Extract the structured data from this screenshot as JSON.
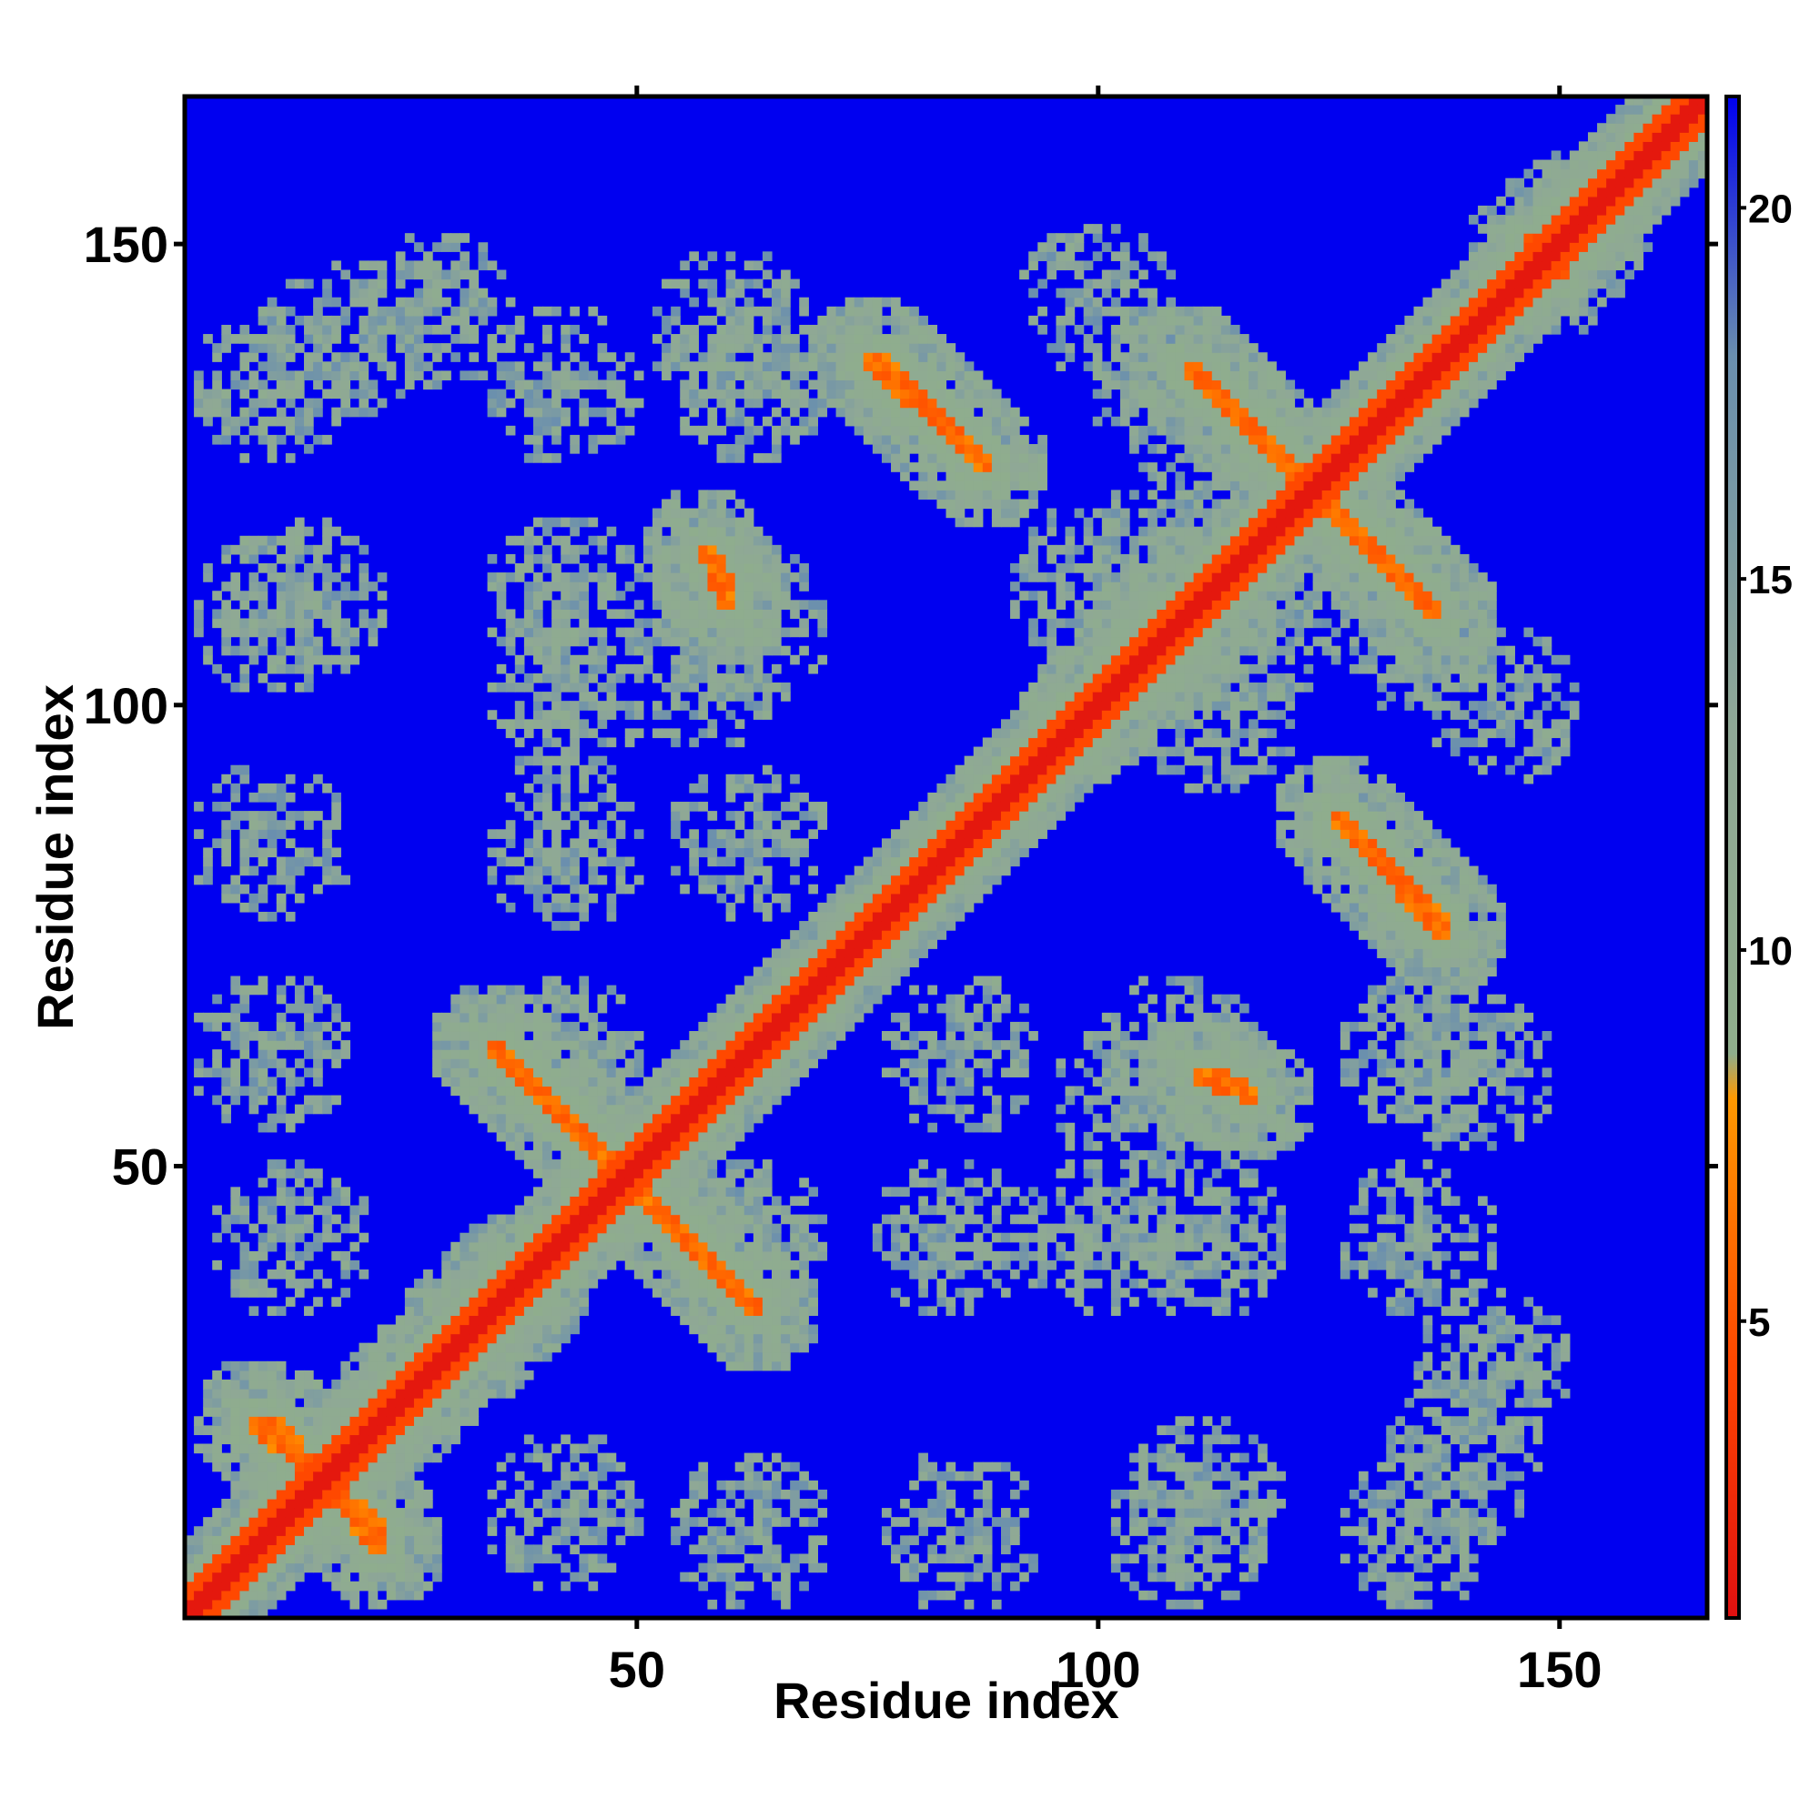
{
  "chart_data": {
    "type": "heatmap",
    "title": "",
    "xlabel": "Residue index",
    "ylabel": "Residue index",
    "xlim": [
      1,
      166
    ],
    "ylim": [
      1,
      166
    ],
    "n_residues": 166,
    "x_ticks": [
      50,
      100,
      150
    ],
    "y_ticks": [
      50,
      100,
      150
    ],
    "colorbar": {
      "ticks": [
        5,
        10,
        15,
        20
      ],
      "range": [
        1,
        21.5
      ],
      "stops": [
        {
          "value": 1,
          "color": "#e01010"
        },
        {
          "value": 4.5,
          "color": "#ff4800"
        },
        {
          "value": 8,
          "color": "#ff9900"
        },
        {
          "value": 8.6,
          "color": "#8fae8c"
        },
        {
          "value": 13,
          "color": "#8fa896"
        },
        {
          "value": 18,
          "color": "#6a8fae"
        },
        {
          "value": 21.5,
          "color": "#0000f0"
        }
      ]
    },
    "background_value": 21.5,
    "background_color": "#0000f0",
    "structure": {
      "main_diagonal": {
        "start": 1,
        "end": 166
      },
      "antiparallel_contacts": [
        {
          "from": [
            10,
            22
          ],
          "to": [
            22,
            8
          ]
        },
        {
          "from": [
            34,
            63
          ],
          "to": [
            63,
            34
          ]
        },
        {
          "from": [
            75,
            138
          ],
          "to": [
            88,
            126
          ]
        },
        {
          "from": [
            110,
            137
          ],
          "to": [
            137,
            110
          ]
        },
        {
          "from": [
            126,
            88
          ],
          "to": [
            138,
            76
          ]
        },
        {
          "from": [
            57,
            117
          ],
          "to": [
            60,
            113
          ]
        },
        {
          "from": [
            111,
            60
          ],
          "to": [
            115,
            58
          ]
        }
      ],
      "parallel_contacts": [
        {
          "from": [
            22,
            22
          ],
          "to": [
            36,
            38
          ]
        },
        {
          "from": [
            98,
            98
          ],
          "to": [
            110,
            108
          ]
        },
        {
          "from": [
            147,
            150
          ],
          "to": [
            153,
            154
          ]
        }
      ],
      "contact_clusters": [
        [
          28,
          143
        ],
        [
          60,
          141
        ],
        [
          100,
          144
        ],
        [
          42,
          112
        ],
        [
          14,
          112
        ],
        [
          42,
          84
        ],
        [
          57,
          104
        ],
        [
          99,
          113
        ],
        [
          118,
          108
        ],
        [
          135,
          108
        ],
        [
          42,
          62
        ],
        [
          85,
          62
        ],
        [
          109,
          62
        ],
        [
          135,
          62
        ],
        [
          60,
          42
        ],
        [
          100,
          42
        ],
        [
          135,
          42
        ],
        [
          15,
          18
        ],
        [
          42,
          12
        ],
        [
          62,
          10
        ],
        [
          85,
          10
        ],
        [
          110,
          10
        ],
        [
          135,
          10
        ],
        [
          18,
          140
        ]
      ]
    }
  }
}
